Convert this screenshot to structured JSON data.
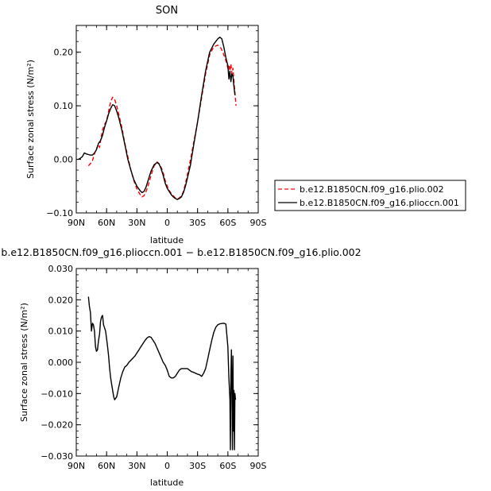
{
  "chart_data": [
    {
      "type": "line",
      "title": "SON",
      "xlabel": "latitude",
      "ylabel": "Surface zonal stress (N/m²)",
      "xlim": [
        90,
        -90
      ],
      "ylim": [
        -0.1,
        0.25
      ],
      "x_ticks": [
        90,
        60,
        30,
        0,
        -30,
        -60,
        -90
      ],
      "x_tick_labels": [
        "90N",
        "60N",
        "30N",
        "0",
        "30S",
        "60S",
        "90S"
      ],
      "y_ticks": [
        -0.1,
        0.0,
        0.1,
        0.2
      ],
      "y_tick_labels": [
        "−0.10",
        "0.00",
        "0.10",
        "0.20"
      ],
      "legend_position": "right",
      "series": [
        {
          "name": "b.e12.B1850CN.f09_g16.plio.002",
          "color": "#ff0000",
          "style": "dashed",
          "x": [
            78,
            76,
            74,
            72,
            70,
            68,
            67,
            66,
            64,
            62,
            60,
            58,
            56,
            54,
            52,
            50,
            48,
            45,
            42,
            39,
            36,
            33,
            30,
            27,
            25,
            23,
            21,
            19,
            16,
            13,
            10,
            8,
            6,
            4,
            2,
            0,
            -2,
            -4,
            -6,
            -8,
            -10,
            -12,
            -14,
            -16,
            -18,
            -20,
            -23,
            -26,
            -30,
            -34,
            -38,
            -42,
            -46,
            -50,
            -53,
            -55,
            -57,
            -59,
            -60,
            -61,
            -62,
            -63,
            -64,
            -65,
            -66,
            -67,
            -68
          ],
          "y": [
            -0.012,
            -0.008,
            -0.002,
            0.01,
            0.02,
            0.028,
            0.022,
            0.035,
            0.055,
            0.065,
            0.072,
            0.09,
            0.108,
            0.116,
            0.112,
            0.1,
            0.085,
            0.06,
            0.03,
            0.005,
            -0.02,
            -0.04,
            -0.055,
            -0.065,
            -0.07,
            -0.068,
            -0.06,
            -0.05,
            -0.03,
            -0.012,
            -0.005,
            -0.008,
            -0.015,
            -0.025,
            -0.04,
            -0.05,
            -0.058,
            -0.064,
            -0.068,
            -0.072,
            -0.074,
            -0.072,
            -0.068,
            -0.06,
            -0.045,
            -0.028,
            0.0,
            0.03,
            0.07,
            0.115,
            0.16,
            0.195,
            0.21,
            0.213,
            0.208,
            0.2,
            0.19,
            0.178,
            0.17,
            0.175,
            0.165,
            0.178,
            0.16,
            0.17,
            0.145,
            0.125,
            0.1
          ]
        },
        {
          "name": "b.e12.B1850CN.f09_g16.plioccn.001",
          "color": "#000000",
          "style": "solid",
          "x": [
            88,
            86,
            84,
            82,
            80,
            78,
            76,
            74,
            72,
            70,
            68,
            66,
            64,
            62,
            60,
            58,
            56,
            54,
            52,
            50,
            48,
            45,
            42,
            39,
            36,
            33,
            30,
            27,
            25,
            23,
            21,
            19,
            16,
            13,
            10,
            8,
            6,
            4,
            2,
            0,
            -2,
            -4,
            -6,
            -8,
            -10,
            -12,
            -14,
            -16,
            -18,
            -20,
            -23,
            -26,
            -30,
            -34,
            -38,
            -42,
            -46,
            -50,
            -52,
            -54,
            -56,
            -58,
            -60,
            -61,
            -62,
            -63,
            -64,
            -65,
            -66,
            -67
          ],
          "y": [
            0.0,
            0.002,
            0.005,
            0.012,
            0.01,
            0.009,
            0.008,
            0.008,
            0.012,
            0.018,
            0.03,
            0.035,
            0.045,
            0.06,
            0.072,
            0.085,
            0.095,
            0.102,
            0.1,
            0.09,
            0.078,
            0.055,
            0.028,
            0.0,
            -0.02,
            -0.038,
            -0.05,
            -0.058,
            -0.062,
            -0.06,
            -0.052,
            -0.04,
            -0.022,
            -0.01,
            -0.006,
            -0.009,
            -0.018,
            -0.03,
            -0.045,
            -0.054,
            -0.06,
            -0.066,
            -0.07,
            -0.073,
            -0.075,
            -0.073,
            -0.07,
            -0.062,
            -0.05,
            -0.035,
            -0.01,
            0.025,
            0.07,
            0.12,
            0.165,
            0.2,
            0.215,
            0.225,
            0.228,
            0.225,
            0.21,
            0.19,
            0.175,
            0.15,
            0.165,
            0.145,
            0.16,
            0.155,
            0.135,
            0.12
          ]
        }
      ]
    },
    {
      "type": "line",
      "title": "b.e12.B1850CN.f09_g16.plioccn.001 − b.e12.B1850CN.f09_g16.plio.002",
      "xlabel": "latitude",
      "ylabel": "Surface zonal stress (N/m²)",
      "xlim": [
        90,
        -90
      ],
      "ylim": [
        -0.03,
        0.03
      ],
      "x_ticks": [
        90,
        60,
        30,
        0,
        -30,
        -60,
        -90
      ],
      "x_tick_labels": [
        "90N",
        "60N",
        "30N",
        "0",
        "30S",
        "60S",
        "90S"
      ],
      "y_ticks": [
        -0.03,
        -0.02,
        -0.01,
        0.0,
        0.01,
        0.02,
        0.03
      ],
      "y_tick_labels": [
        "−0.030",
        "−0.020",
        "−0.010",
        "0.000",
        "0.010",
        "0.020",
        "0.030"
      ],
      "series": [
        {
          "color": "#000000",
          "style": "solid",
          "x": [
            78,
            77,
            76,
            75,
            74,
            73,
            72,
            71,
            70,
            69,
            68,
            67,
            66,
            65,
            64,
            63,
            62,
            61,
            60,
            59,
            58,
            57,
            56,
            55,
            54,
            53,
            52,
            50,
            48,
            46,
            44,
            42,
            40,
            38,
            35,
            32,
            30,
            28,
            26,
            24,
            22,
            20,
            18,
            16,
            14,
            12,
            10,
            8,
            6,
            4,
            2,
            0,
            -2,
            -4,
            -6,
            -8,
            -10,
            -12,
            -14,
            -16,
            -18,
            -20,
            -22,
            -24,
            -26,
            -28,
            -30,
            -32,
            -34,
            -36,
            -38,
            -40,
            -42,
            -44,
            -46,
            -48,
            -50,
            -52,
            -54,
            -56,
            -58,
            -60,
            -61,
            -62,
            -62.5,
            -63,
            -63.5,
            -64,
            -64.5,
            -65,
            -65.5,
            -66,
            -66.5,
            -67,
            -67.5
          ],
          "y": [
            0.021,
            0.018,
            0.016,
            0.01,
            0.0125,
            0.012,
            0.01,
            0.005,
            0.0035,
            0.004,
            0.007,
            0.009,
            0.013,
            0.0145,
            0.015,
            0.012,
            0.011,
            0.01,
            0.0075,
            0.005,
            0.002,
            -0.002,
            -0.005,
            -0.007,
            -0.009,
            -0.011,
            -0.012,
            -0.011,
            -0.008,
            -0.005,
            -0.003,
            -0.0015,
            -0.001,
            0.0,
            0.001,
            0.002,
            0.003,
            0.004,
            0.005,
            0.006,
            0.007,
            0.0078,
            0.0082,
            0.008,
            0.007,
            0.006,
            0.0045,
            0.003,
            0.0015,
            0.0,
            -0.001,
            -0.0025,
            -0.0045,
            -0.005,
            -0.005,
            -0.0045,
            -0.0035,
            -0.0025,
            -0.002,
            -0.002,
            -0.002,
            -0.002,
            -0.0025,
            -0.003,
            -0.0032,
            -0.0035,
            -0.0038,
            -0.004,
            -0.0045,
            -0.0035,
            -0.002,
            0.001,
            0.004,
            0.007,
            0.0095,
            0.0112,
            0.012,
            0.0123,
            0.0124,
            0.0125,
            0.0122,
            0.005,
            -0.005,
            -0.012,
            -0.028,
            -0.005,
            0.004,
            -0.008,
            -0.028,
            0.002,
            -0.022,
            -0.009,
            -0.028,
            -0.01,
            -0.012
          ]
        }
      ]
    }
  ]
}
